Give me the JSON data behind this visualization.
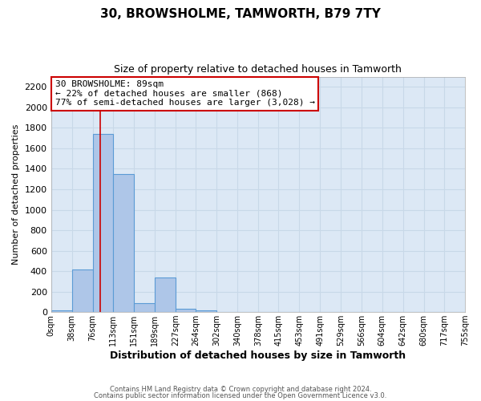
{
  "title": "30, BROWSHOLME, TAMWORTH, B79 7TY",
  "subtitle": "Size of property relative to detached houses in Tamworth",
  "xlabel": "Distribution of detached houses by size in Tamworth",
  "ylabel": "Number of detached properties",
  "bar_color": "#aec6e8",
  "bar_edge_color": "#5b9bd5",
  "grid_color": "#c8d8e8",
  "background_color": "#ffffff",
  "plot_bg_color": "#dce8f5",
  "bin_edges": [
    0,
    38,
    76,
    113,
    151,
    189,
    227,
    264,
    302,
    340,
    378,
    415,
    453,
    491,
    529,
    566,
    604,
    642,
    680,
    717,
    755
  ],
  "bin_labels": [
    "0sqm",
    "38sqm",
    "76sqm",
    "113sqm",
    "151sqm",
    "189sqm",
    "227sqm",
    "264sqm",
    "302sqm",
    "340sqm",
    "378sqm",
    "415sqm",
    "453sqm",
    "491sqm",
    "529sqm",
    "566sqm",
    "604sqm",
    "642sqm",
    "680sqm",
    "717sqm",
    "755sqm"
  ],
  "bar_heights": [
    20,
    415,
    1740,
    1350,
    85,
    340,
    30,
    20,
    0,
    0,
    0,
    0,
    0,
    0,
    0,
    0,
    0,
    0,
    0,
    0
  ],
  "property_value": 89,
  "red_line_x": 89,
  "annotation_text_line1": "30 BROWSHOLME: 89sqm",
  "annotation_text_line2": "← 22% of detached houses are smaller (868)",
  "annotation_text_line3": "77% of semi-detached houses are larger (3,028) →",
  "annotation_box_color": "#ffffff",
  "annotation_box_edge": "#cc0000",
  "red_line_color": "#cc0000",
  "ylim": [
    0,
    2300
  ],
  "yticks": [
    0,
    200,
    400,
    600,
    800,
    1000,
    1200,
    1400,
    1600,
    1800,
    2000,
    2200
  ],
  "footer_line1": "Contains HM Land Registry data © Crown copyright and database right 2024.",
  "footer_line2": "Contains public sector information licensed under the Open Government Licence v3.0."
}
